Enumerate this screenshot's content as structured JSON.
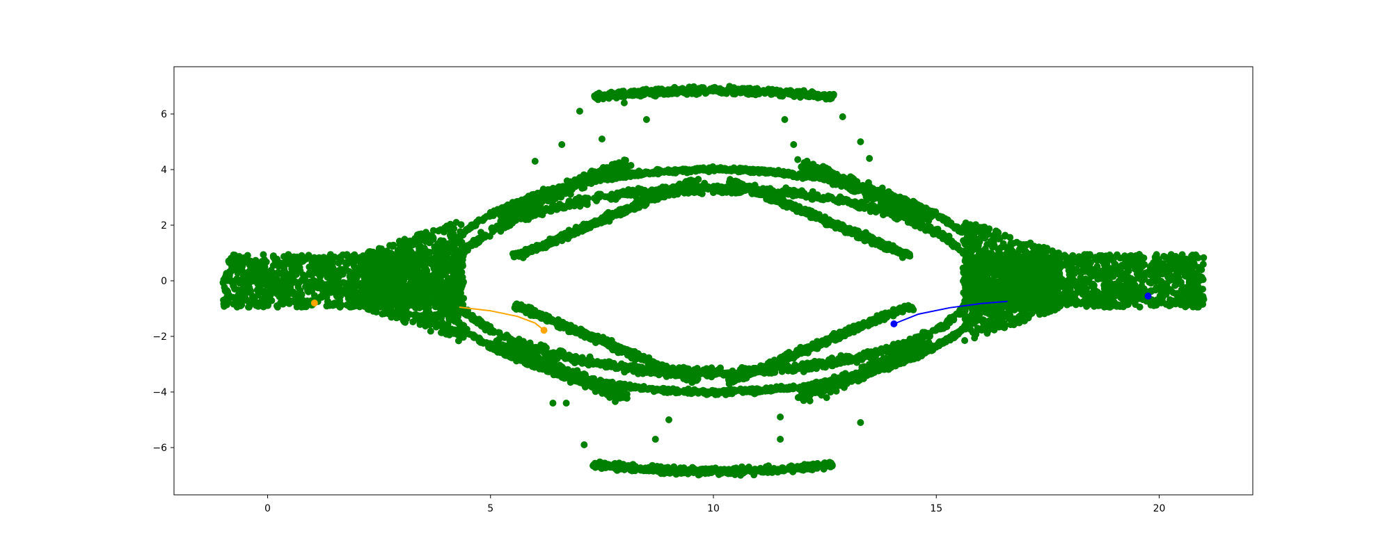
{
  "chart_data": {
    "type": "scatter",
    "title": "",
    "xlabel": "",
    "ylabel": "",
    "xlim": [
      -2.1,
      22.1
    ],
    "ylim": [
      -7.7,
      7.7
    ],
    "grid": false,
    "x_ticks": [
      0,
      5,
      10,
      15,
      20
    ],
    "x_tick_labels": [
      "0",
      "5",
      "10",
      "15",
      "20"
    ],
    "y_ticks": [
      -6,
      -4,
      -2,
      0,
      2,
      4,
      6
    ],
    "y_tick_labels": [
      "−6",
      "−4",
      "−2",
      "0",
      "2",
      "4",
      "6"
    ],
    "scatter_color": "#008000",
    "phase_space_regions": [
      {
        "kind": "band",
        "x_range": [
          -1,
          4.4
        ],
        "y_half_width": 1.0
      },
      {
        "kind": "band",
        "x_range": [
          15.6,
          21
        ],
        "y_half_width": 1.0
      },
      {
        "kind": "flare",
        "x_range": [
          2.5,
          4.4
        ],
        "y_range": [
          -2.2,
          2.2
        ]
      },
      {
        "kind": "flare",
        "x_range": [
          15.6,
          17.5
        ],
        "y_range": [
          -2.2,
          2.2
        ]
      },
      {
        "kind": "outer_arc",
        "center": [
          10,
          0
        ],
        "x_half_width": 7.2,
        "y_amplitude": 4.0
      },
      {
        "kind": "inner_lens",
        "center": [
          10,
          0
        ],
        "x_half_width": 6.0,
        "y_amplitude": 3.5
      },
      {
        "kind": "top_cap",
        "x_range": [
          7.2,
          12.7
        ],
        "y_range": [
          6.4,
          7.0
        ]
      },
      {
        "kind": "bottom_cap",
        "x_range": [
          7.2,
          12.7
        ],
        "y_range": [
          -7.0,
          -6.4
        ]
      }
    ],
    "series": [
      {
        "color": "#FFA500",
        "line": [
          [
            4.3,
            -0.95
          ],
          [
            5.0,
            -1.08
          ],
          [
            5.6,
            -1.28
          ],
          [
            6.0,
            -1.52
          ],
          [
            6.2,
            -1.78
          ]
        ],
        "markers": [
          [
            1.05,
            -0.8
          ],
          [
            6.2,
            -1.78
          ]
        ]
      },
      {
        "color": "#0000FF",
        "line": [
          [
            14.05,
            -1.55
          ],
          [
            14.6,
            -1.2
          ],
          [
            15.3,
            -0.97
          ],
          [
            16.0,
            -0.82
          ],
          [
            16.6,
            -0.74
          ]
        ],
        "markers": [
          [
            14.05,
            -1.55
          ],
          [
            19.75,
            -0.55
          ]
        ]
      }
    ]
  }
}
